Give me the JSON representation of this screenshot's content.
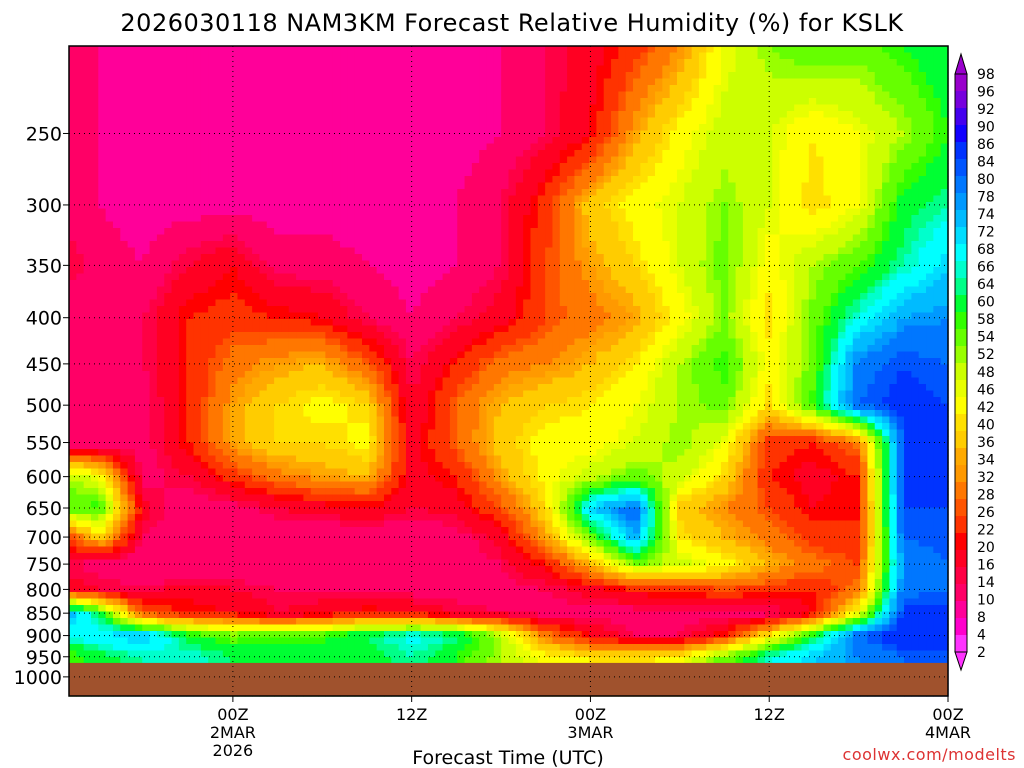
{
  "chart_data": {
    "type": "heatmap",
    "title": "2026030118 NAM3KM Forecast Relative Humidity (%) for KSLK",
    "xlabel": "Forecast Time (UTC)",
    "ylabel": "",
    "credit": "coolwx.com/modelts",
    "y_scale": "log",
    "ylim": [
      1050,
      200
    ],
    "xlim_hours": [
      -5,
      54
    ],
    "y_ticks": [
      {
        "value": 250,
        "label": "250"
      },
      {
        "value": 300,
        "label": "300"
      },
      {
        "value": 350,
        "label": "350"
      },
      {
        "value": 400,
        "label": "400"
      },
      {
        "value": 450,
        "label": "450"
      },
      {
        "value": 500,
        "label": "500"
      },
      {
        "value": 550,
        "label": "550"
      },
      {
        "value": 600,
        "label": "600"
      },
      {
        "value": 650,
        "label": "650"
      },
      {
        "value": 700,
        "label": "700"
      },
      {
        "value": 750,
        "label": "750"
      },
      {
        "value": 800,
        "label": "800"
      },
      {
        "value": 850,
        "label": "850"
      },
      {
        "value": 900,
        "label": "900"
      },
      {
        "value": 950,
        "label": "950"
      },
      {
        "value": 1000,
        "label": "1000"
      }
    ],
    "x_ticks": [
      {
        "hour": 6,
        "lines": [
          "00Z",
          "2MAR",
          "2026"
        ]
      },
      {
        "hour": 18,
        "lines": [
          "12Z"
        ]
      },
      {
        "hour": 30,
        "lines": [
          "00Z",
          "3MAR"
        ]
      },
      {
        "hour": 42,
        "lines": [
          "12Z"
        ]
      },
      {
        "hour": 54,
        "lines": [
          "00Z",
          "4MAR"
        ]
      }
    ],
    "x_time_hours": [
      -5,
      -3,
      0,
      3,
      6,
      9,
      12,
      15,
      18,
      21,
      24,
      27,
      30,
      33,
      36,
      39,
      42,
      45,
      48,
      51,
      54
    ],
    "levels": [
      200,
      250,
      300,
      350,
      400,
      450,
      500,
      550,
      600,
      650,
      700,
      750,
      800,
      850,
      900,
      950
    ],
    "rh_values": [
      [
        12,
        10,
        8,
        8,
        8,
        8,
        8,
        8,
        8,
        8,
        10,
        14,
        18,
        24,
        32,
        46,
        54,
        58,
        56,
        60,
        64
      ],
      [
        12,
        10,
        8,
        8,
        8,
        8,
        8,
        8,
        8,
        8,
        10,
        14,
        20,
        34,
        44,
        50,
        48,
        42,
        46,
        52,
        60
      ],
      [
        12,
        10,
        8,
        8,
        8,
        8,
        8,
        8,
        8,
        10,
        14,
        24,
        38,
        44,
        48,
        54,
        48,
        40,
        46,
        62,
        66
      ],
      [
        16,
        12,
        10,
        16,
        20,
        12,
        12,
        10,
        8,
        10,
        14,
        26,
        34,
        40,
        48,
        56,
        44,
        52,
        58,
        66,
        74
      ],
      [
        10,
        12,
        14,
        22,
        24,
        22,
        20,
        14,
        10,
        14,
        18,
        26,
        30,
        34,
        44,
        54,
        40,
        56,
        68,
        78,
        80
      ],
      [
        10,
        10,
        14,
        22,
        30,
        34,
        36,
        28,
        14,
        22,
        30,
        32,
        36,
        42,
        52,
        60,
        44,
        56,
        82,
        86,
        84
      ],
      [
        10,
        10,
        12,
        22,
        34,
        40,
        44,
        40,
        16,
        28,
        36,
        40,
        42,
        46,
        52,
        56,
        40,
        60,
        84,
        88,
        86
      ],
      [
        10,
        10,
        12,
        22,
        34,
        40,
        40,
        44,
        18,
        28,
        38,
        44,
        44,
        48,
        54,
        46,
        24,
        22,
        30,
        86,
        88
      ],
      [
        52,
        46,
        12,
        16,
        24,
        30,
        34,
        36,
        18,
        22,
        34,
        44,
        50,
        56,
        50,
        40,
        22,
        18,
        22,
        88,
        88
      ],
      [
        58,
        60,
        18,
        10,
        12,
        16,
        18,
        20,
        16,
        18,
        26,
        40,
        74,
        84,
        38,
        32,
        26,
        20,
        22,
        86,
        86
      ],
      [
        24,
        40,
        14,
        10,
        10,
        10,
        10,
        10,
        10,
        12,
        18,
        34,
        56,
        78,
        42,
        36,
        30,
        24,
        22,
        84,
        86
      ],
      [
        14,
        12,
        10,
        10,
        10,
        10,
        10,
        10,
        10,
        10,
        14,
        22,
        36,
        54,
        50,
        44,
        36,
        30,
        26,
        80,
        84
      ],
      [
        18,
        16,
        14,
        18,
        16,
        14,
        14,
        14,
        12,
        12,
        12,
        14,
        18,
        22,
        24,
        26,
        24,
        22,
        30,
        82,
        84
      ],
      [
        78,
        62,
        26,
        22,
        20,
        16,
        18,
        22,
        20,
        16,
        14,
        12,
        12,
        12,
        12,
        12,
        12,
        20,
        46,
        88,
        88
      ],
      [
        68,
        72,
        76,
        62,
        56,
        58,
        60,
        64,
        70,
        66,
        52,
        30,
        20,
        14,
        14,
        22,
        42,
        62,
        84,
        90,
        90
      ],
      [
        58,
        62,
        66,
        68,
        64,
        62,
        60,
        62,
        66,
        60,
        52,
        44,
        42,
        40,
        44,
        56,
        68,
        74,
        80,
        84,
        84
      ]
    ],
    "ground_level": 965,
    "colorbar": {
      "values": [
        2,
        4,
        8,
        10,
        14,
        16,
        20,
        22,
        26,
        28,
        32,
        34,
        36,
        40,
        42,
        46,
        48,
        52,
        54,
        58,
        60,
        64,
        66,
        68,
        72,
        74,
        78,
        80,
        84,
        86,
        90,
        92,
        96,
        98
      ],
      "colors": [
        "#ff33ff",
        "#ff00cc",
        "#ff0099",
        "#ff0066",
        "#ff0044",
        "#ff0022",
        "#ff0000",
        "#ff3300",
        "#ff5500",
        "#ff7700",
        "#ff9900",
        "#ffaa00",
        "#ffcc00",
        "#ffe000",
        "#ffff00",
        "#e8ff00",
        "#ccff00",
        "#99ff00",
        "#66ff00",
        "#33ff00",
        "#00ff33",
        "#00ff88",
        "#00ffcc",
        "#00ffff",
        "#00ddff",
        "#00bbff",
        "#0099ff",
        "#0077ff",
        "#0055ff",
        "#0033ff",
        "#1100ff",
        "#4400ee",
        "#7700dd",
        "#9900cc"
      ],
      "labels": [
        "98",
        "96",
        "92",
        "90",
        "86",
        "84",
        "80",
        "78",
        "74",
        "72",
        "68",
        "66",
        "64",
        "60",
        "58",
        "54",
        "52",
        "48",
        "46",
        "42",
        "40",
        "36",
        "34",
        "32",
        "28",
        "26",
        "22",
        "20",
        "16",
        "14",
        "10",
        "8",
        "4",
        "2"
      ]
    },
    "ground_color": "#a0522d",
    "grid": true
  }
}
